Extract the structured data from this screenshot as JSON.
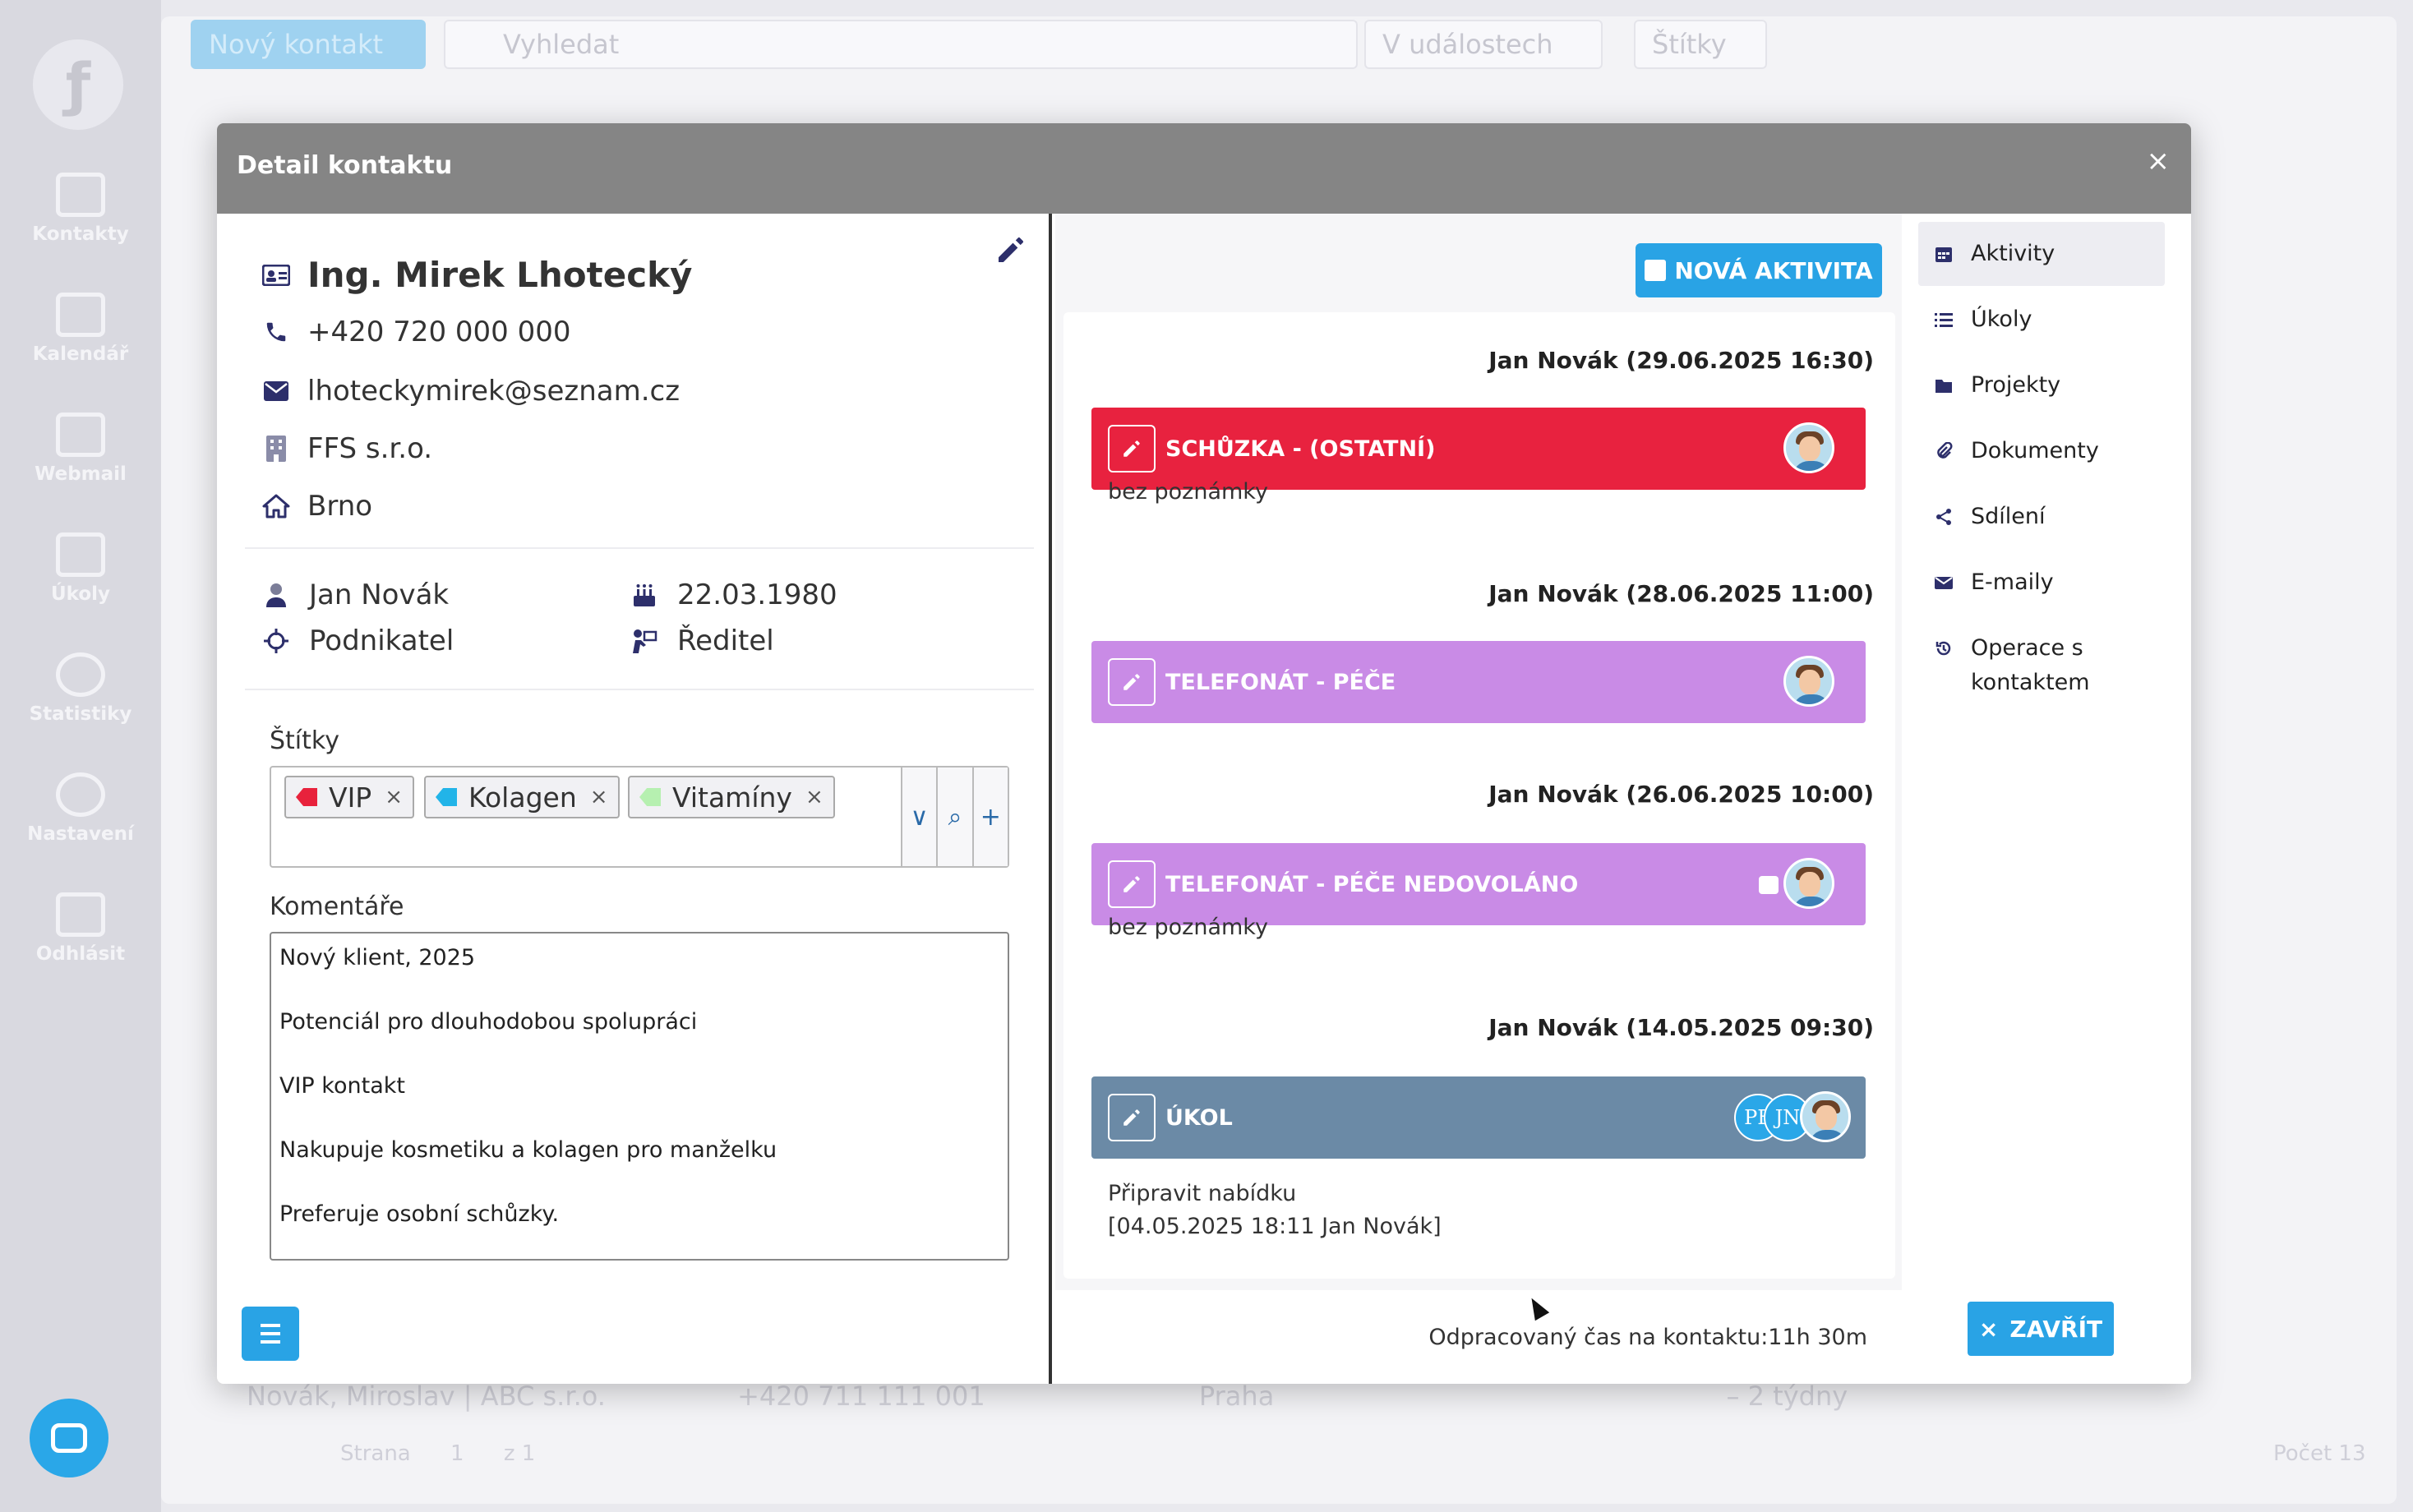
{
  "sidebar": {
    "items": [
      {
        "label": "Kontakty"
      },
      {
        "label": "Kalendář"
      },
      {
        "label": "Webmail"
      },
      {
        "label": "Úkoly"
      },
      {
        "label": "Statistiky"
      },
      {
        "label": "Nastavení"
      },
      {
        "label": "Odhlásit"
      }
    ]
  },
  "background": {
    "new_contact_label": "Nový kontakt",
    "search_placeholder": "Vyhledat",
    "in_events_label": "V událostech",
    "tags_label": "Štítky",
    "row_text": "Novák, Miroslav | ABC s.r.o.",
    "row_phone": "+420 711 111 001",
    "row_city": "Praha",
    "row_time": "– 2 týdny",
    "pager_text": "Strana",
    "pager_page": "1",
    "pager_of": "z 1",
    "count_text": "Počet 13"
  },
  "modal": {
    "title": "Detail kontaktu",
    "close_glyph": "×"
  },
  "contact": {
    "name": "Ing. Mirek Lhotecký",
    "phone": "+420 720 000 000",
    "email": "lhoteckymirek@seznam.cz",
    "company": "FFS s.r.o.",
    "city": "Brno",
    "owner": "Jan Novák",
    "birthday": "22.03.1980",
    "type": "Podnikatel",
    "position": "Ředitel"
  },
  "tags": {
    "label": "Štítky",
    "items": [
      {
        "name": "VIP",
        "color": "#e8223c"
      },
      {
        "name": "Kolagen",
        "color": "#22b4e8"
      },
      {
        "name": "Vitamíny",
        "color": "#b6f0b0"
      }
    ],
    "remove_glyph": "×",
    "tools": [
      "∨",
      "⌕",
      "+"
    ]
  },
  "comments": {
    "label": "Komentáře",
    "lines": [
      "Nový klient, 2025",
      "Potenciál pro dlouhodobou spolupráci",
      "VIP kontakt",
      "Nakupuje kosmetiku a kolagen pro manželku",
      "Preferuje osobní schůzky."
    ]
  },
  "activities": {
    "new_label": "NOVÁ AKTIVITA",
    "items": [
      {
        "header": "Jan Novák (29.06.2025 16:30)",
        "title": "SCHŮZKA - (OSTATNÍ)",
        "color": "#e8223f",
        "note": "bez poznámky"
      },
      {
        "header": "Jan Novák (28.06.2025 11:00)",
        "title": "TELEFONÁT - PÉČE",
        "color": "#c98be6",
        "note": ""
      },
      {
        "header": "Jan Novák (26.06.2025 10:00)",
        "title": "TELEFONÁT - PÉČE NEDOVOLÁNO",
        "color": "#c98be6",
        "note": "bez poznámky"
      },
      {
        "header": "Jan Novák (14.05.2025 09:30)",
        "title": "ÚKOL",
        "color": "#6b8aa6",
        "note": "Připravit nabídku",
        "note2": "[04.05.2025 18:11 Jan Novák]",
        "initials": [
          "PE",
          "JN"
        ]
      }
    ],
    "work_time": "Odpracovaný čas na kontaktu:11h 30m"
  },
  "nav": {
    "items": [
      {
        "label": "Aktivity",
        "icon": "calendar-icon"
      },
      {
        "label": "Úkoly",
        "icon": "list-icon"
      },
      {
        "label": "Projekty",
        "icon": "folder-icon"
      },
      {
        "label": "Dokumenty",
        "icon": "paperclip-icon"
      },
      {
        "label": "Sdílení",
        "icon": "share-icon"
      },
      {
        "label": "E-maily",
        "icon": "envelope-icon"
      },
      {
        "label": "Operace s kontaktem",
        "icon": "history-icon"
      }
    ],
    "close_label": "ZAVŘÍT"
  },
  "colors": {
    "accent": "#29a3e5",
    "header_gray": "#858585"
  }
}
